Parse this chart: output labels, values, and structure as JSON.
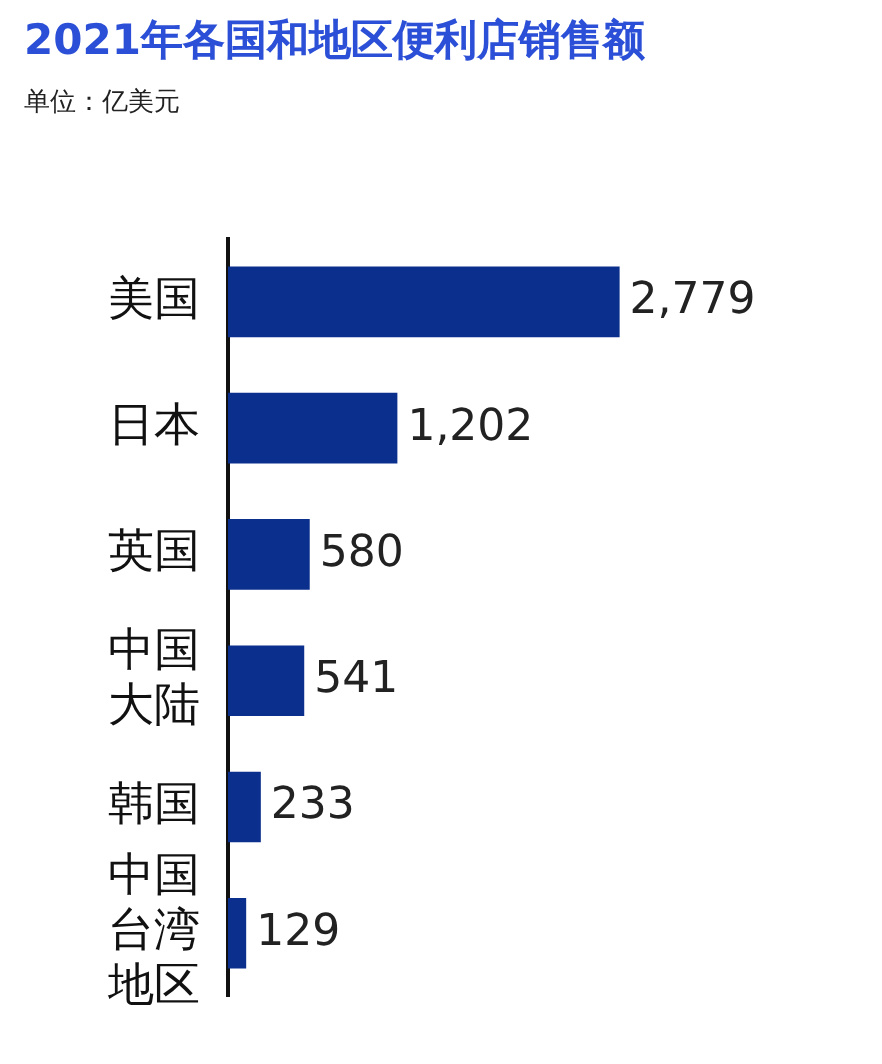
{
  "chart_data": {
    "type": "bar",
    "orientation": "horizontal",
    "title": "2021年各国和地区便利店销售额",
    "subtitle": "单位：亿美元",
    "categories": [
      "美国",
      "日本",
      "英国",
      "中国大陆",
      "韩国",
      "中国台湾地区"
    ],
    "values": [
      2779,
      1202,
      580,
      541,
      233,
      129
    ],
    "value_labels": [
      "2,779",
      "1,202",
      "580",
      "541",
      "233",
      "129"
    ],
    "color": "#0b2f8c"
  }
}
